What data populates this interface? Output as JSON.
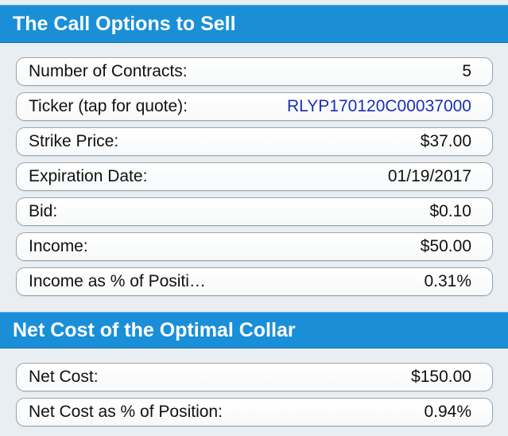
{
  "sections": [
    {
      "title": "The Call Options to Sell",
      "rows": [
        {
          "label": "Number of Contracts:",
          "value": "5"
        },
        {
          "label": "Ticker (tap for quote):",
          "value": "RLYP170120C00037000"
        },
        {
          "label": "Strike Price:",
          "value": "$37.00"
        },
        {
          "label": "Expiration Date:",
          "value": "01/19/2017"
        },
        {
          "label": "Bid:",
          "value": "$0.10"
        },
        {
          "label": "Income:",
          "value": "$50.00"
        },
        {
          "label": "Income as % of Positi…",
          "value": "0.31%"
        }
      ]
    },
    {
      "title": "Net Cost of the Optimal Collar",
      "rows": [
        {
          "label": "Net Cost:",
          "value": "$150.00"
        },
        {
          "label": "Net Cost as % of Position:",
          "value": "0.94%"
        }
      ]
    }
  ],
  "colors": {
    "header_bg": "#1a8fd8",
    "link_text": "#1a2fb3",
    "page_bg": "#e9eef2"
  }
}
